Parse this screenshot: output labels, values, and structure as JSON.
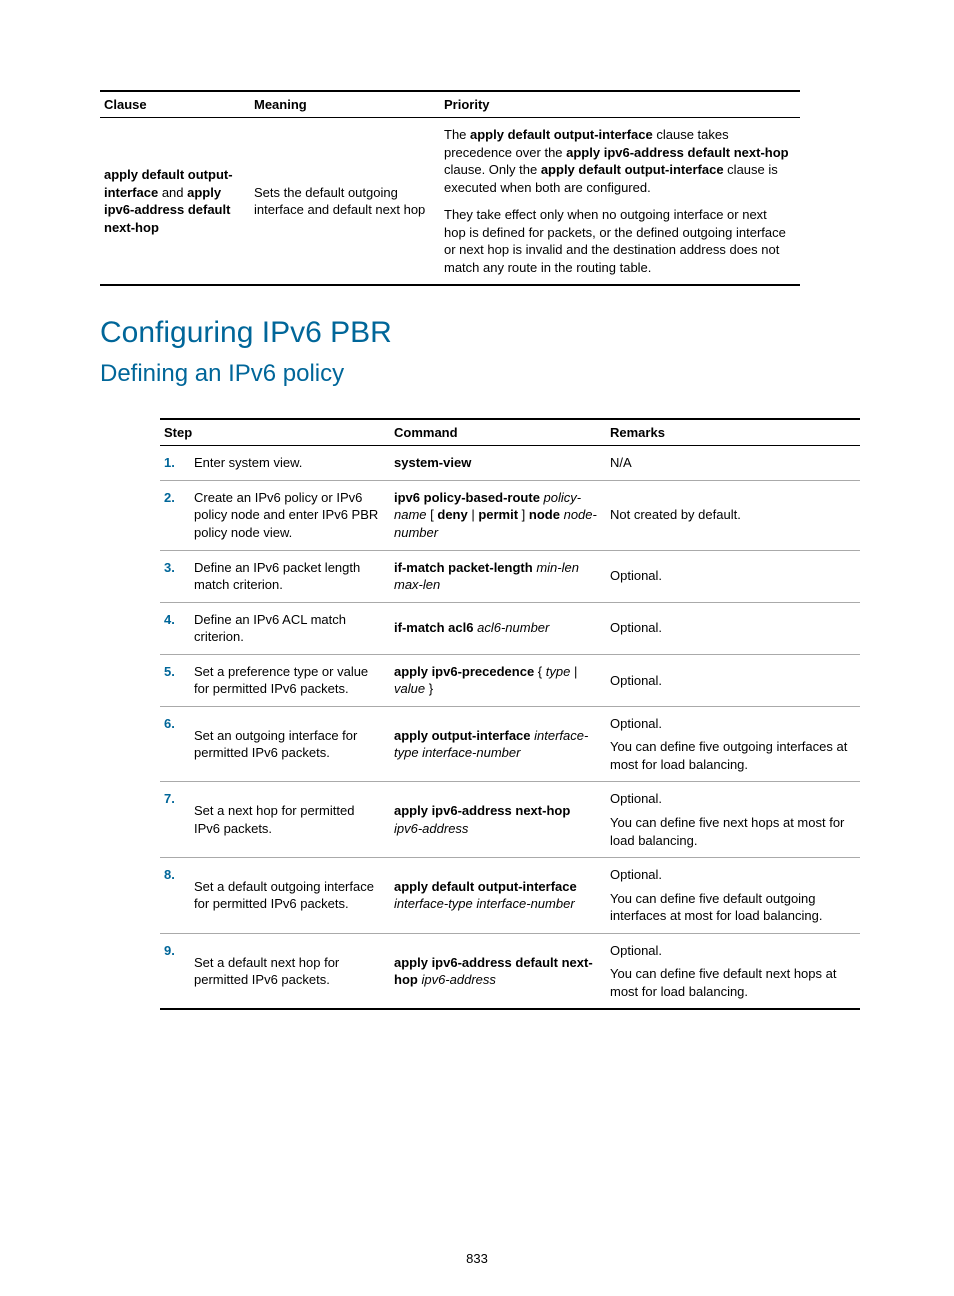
{
  "table1": {
    "headers": {
      "clause": "Clause",
      "meaning": "Meaning",
      "priority": "Priority"
    },
    "row": {
      "clause_parts": [
        {
          "text": "apply default output-interface",
          "bold": true
        },
        {
          "text": " and ",
          "bold": false
        },
        {
          "text": "apply ipv6-address default next-hop",
          "bold": true
        }
      ],
      "meaning": "Sets the default outgoing interface and default next hop",
      "priority_p1_parts": [
        {
          "text": "The ",
          "bold": false
        },
        {
          "text": "apply default output-interface",
          "bold": true
        },
        {
          "text": " clause takes precedence over the ",
          "bold": false
        },
        {
          "text": "apply ipv6-address default next-hop",
          "bold": true
        },
        {
          "text": " clause. Only the ",
          "bold": false
        },
        {
          "text": "apply default output-interface",
          "bold": true
        },
        {
          "text": " clause is executed when both are configured.",
          "bold": false
        }
      ],
      "priority_p2": "They take effect only when no outgoing interface or next hop is defined for packets, or the defined outgoing interface or next hop is invalid and the destination address does not match any route in the routing table."
    }
  },
  "heading1": "Configuring IPv6 PBR",
  "heading2": "Defining an IPv6 policy",
  "table2": {
    "headers": {
      "step": "Step",
      "command": "Command",
      "remarks": "Remarks"
    },
    "col_widths": {
      "num": "26px",
      "step": "200px",
      "command": "210px",
      "remarks": "auto"
    },
    "rows": [
      {
        "num": "1.",
        "step": "Enter system view.",
        "command": [
          {
            "t": "system-view",
            "s": "kw"
          }
        ],
        "remarks": [
          "N/A"
        ]
      },
      {
        "num": "2.",
        "step": "Create an IPv6 policy or IPv6 policy node and enter IPv6 PBR policy node view.",
        "command": [
          {
            "t": "ipv6 policy-based-route",
            "s": "kw"
          },
          {
            "t": " ",
            "s": ""
          },
          {
            "t": "policy-name",
            "s": "arg"
          },
          {
            "t": " [ ",
            "s": ""
          },
          {
            "t": "deny",
            "s": "kw"
          },
          {
            "t": " | ",
            "s": ""
          },
          {
            "t": "permit",
            "s": "kw"
          },
          {
            "t": " ] ",
            "s": ""
          },
          {
            "t": "node",
            "s": "kw"
          },
          {
            "t": " ",
            "s": ""
          },
          {
            "t": "node-number",
            "s": "arg"
          }
        ],
        "remarks": [
          "Not created by default."
        ]
      },
      {
        "num": "3.",
        "step": "Define an IPv6 packet length match criterion.",
        "command": [
          {
            "t": "if-match packet-length",
            "s": "kw"
          },
          {
            "t": " ",
            "s": ""
          },
          {
            "t": "min-len max-len",
            "s": "arg"
          }
        ],
        "remarks": [
          "Optional."
        ]
      },
      {
        "num": "4.",
        "step": "Define an IPv6 ACL match criterion.",
        "command": [
          {
            "t": "if-match acl6",
            "s": "kw"
          },
          {
            "t": " ",
            "s": ""
          },
          {
            "t": "acl6-number",
            "s": "arg"
          }
        ],
        "remarks": [
          "Optional."
        ]
      },
      {
        "num": "5.",
        "step": "Set a preference type or value for permitted IPv6 packets.",
        "command": [
          {
            "t": "apply ipv6-precedence",
            "s": "kw"
          },
          {
            "t": " { ",
            "s": ""
          },
          {
            "t": "type",
            "s": "arg"
          },
          {
            "t": " | ",
            "s": ""
          },
          {
            "t": "value",
            "s": "arg"
          },
          {
            "t": " }",
            "s": ""
          }
        ],
        "remarks": [
          "Optional."
        ]
      },
      {
        "num": "6.",
        "step": "Set an outgoing interface for permitted IPv6 packets.",
        "command": [
          {
            "t": "apply output-interface",
            "s": "kw"
          },
          {
            "t": " ",
            "s": ""
          },
          {
            "t": "interface-type interface-number",
            "s": "arg"
          }
        ],
        "remarks": [
          "Optional.",
          "You can define five outgoing interfaces at most for load balancing."
        ]
      },
      {
        "num": "7.",
        "step": "Set a next hop for permitted IPv6 packets.",
        "command": [
          {
            "t": "apply ipv6-address next-hop",
            "s": "kw"
          },
          {
            "t": " ",
            "s": ""
          },
          {
            "t": "ipv6-address",
            "s": "arg"
          }
        ],
        "remarks": [
          "Optional.",
          "You can define five next hops at most for load balancing."
        ]
      },
      {
        "num": "8.",
        "step": "Set a default outgoing interface for permitted IPv6 packets.",
        "command": [
          {
            "t": "apply default output-interface",
            "s": "kw"
          },
          {
            "t": " ",
            "s": ""
          },
          {
            "t": "interface-type interface-number",
            "s": "arg"
          }
        ],
        "remarks": [
          "Optional.",
          "You can define five default outgoing interfaces at most for load balancing."
        ]
      },
      {
        "num": "9.",
        "step": "Set a default next hop for permitted IPv6 packets.",
        "command": [
          {
            "t": "apply ipv6-address default next-hop",
            "s": "kw"
          },
          {
            "t": " ",
            "s": ""
          },
          {
            "t": "ipv6-address",
            "s": "arg"
          }
        ],
        "remarks": [
          "Optional.",
          "You can define five default next hops at most for load balancing."
        ]
      }
    ]
  },
  "page_number": "833"
}
